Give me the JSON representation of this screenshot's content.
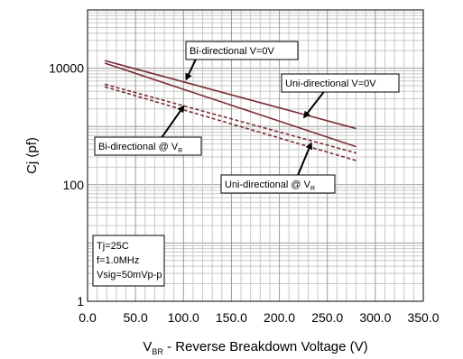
{
  "chart_data": {
    "type": "line",
    "y_scale": "log",
    "xlim": [
      0,
      350
    ],
    "ylim": [
      1,
      100000
    ],
    "x_ticks": [
      "0.0",
      "50.0",
      "100.0",
      "150.0",
      "200.0",
      "250.0",
      "300.0",
      "350.0"
    ],
    "y_ticks": [
      {
        "value": 1,
        "label": "1"
      },
      {
        "value": 100,
        "label": "100"
      },
      {
        "value": 10000,
        "label": "10000"
      }
    ],
    "ylabel": "Cj (pf)",
    "xlabel": {
      "main": "V",
      "sub": "BR",
      "rest": " - Reverse Breakdown Voltage (V)"
    },
    "grid": true,
    "series": [
      {
        "name": "Bi-directional V=0V",
        "style": "solid",
        "color": "#7a2e34",
        "x": [
          18,
          280
        ],
        "y": [
          13500,
          920
        ]
      },
      {
        "name": "Uni-directional V=0V",
        "style": "solid",
        "color": "#7a2e34",
        "x": [
          18,
          280
        ],
        "y": [
          12200,
          450
        ]
      },
      {
        "name": "Bi-directional @ VR",
        "style": "dashed",
        "color": "#7a2e34",
        "x": [
          18,
          280
        ],
        "y": [
          5300,
          350
        ]
      },
      {
        "name": "Uni-directional @ VR",
        "style": "dashed",
        "color": "#7a2e34",
        "x": [
          18,
          280
        ],
        "y": [
          4800,
          260
        ]
      }
    ],
    "annotations": [
      {
        "id": "bi0",
        "label": "Bi-directional V=0V",
        "sub": "",
        "arrow_from": [
          120,
          25000
        ],
        "arrow_to": [
          103,
          6500
        ]
      },
      {
        "id": "uni0",
        "label": "Uni-directional V=0V",
        "sub": "",
        "arrow_from": [
          255,
          6000
        ],
        "arrow_to": [
          226,
          1450
        ]
      },
      {
        "id": "bivr",
        "label": "Bi-directional @ V",
        "sub": "R",
        "arrow_from": [
          75,
          570
        ],
        "arrow_to": [
          100,
          2200
        ]
      },
      {
        "id": "univr",
        "label": "Uni-directional @ V",
        "sub": "R",
        "arrow_from": [
          218,
          130
        ],
        "arrow_to": [
          233,
          510
        ]
      }
    ],
    "conditions": [
      "Tj=25C",
      "f=1.0MHz",
      "Vsig=50mVp-p"
    ]
  }
}
